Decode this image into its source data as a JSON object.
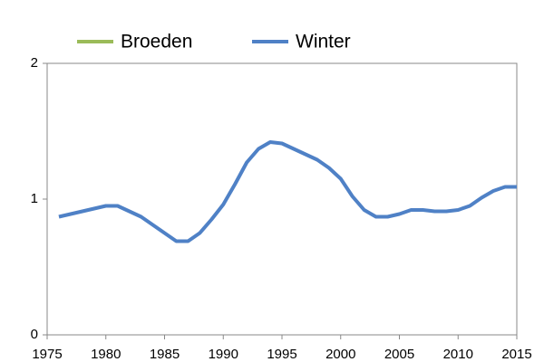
{
  "chart_data": {
    "type": "line",
    "x": [
      1976,
      1977,
      1978,
      1979,
      1980,
      1981,
      1982,
      1983,
      1984,
      1985,
      1986,
      1987,
      1988,
      1989,
      1990,
      1991,
      1992,
      1993,
      1994,
      1995,
      1996,
      1997,
      1998,
      1999,
      2000,
      2001,
      2002,
      2003,
      2004,
      2005,
      2006,
      2007,
      2008,
      2009,
      2010,
      2011,
      2012,
      2013,
      2014,
      2015
    ],
    "series": [
      {
        "name": "Broeden",
        "color": "#9bbb59",
        "values": [
          null,
          null,
          null,
          null,
          null,
          null,
          null,
          null,
          null,
          null,
          null,
          null,
          null,
          null,
          null,
          null,
          null,
          null,
          null,
          null,
          null,
          null,
          null,
          null,
          null,
          null,
          null,
          null,
          null,
          null,
          null,
          null,
          null,
          null,
          null,
          null,
          null,
          null,
          null,
          null
        ]
      },
      {
        "name": "Winter",
        "color": "#4f81c6",
        "values": [
          0.87,
          0.89,
          0.91,
          0.93,
          0.95,
          0.95,
          0.91,
          0.87,
          0.81,
          0.75,
          0.69,
          0.69,
          0.75,
          0.85,
          0.96,
          1.11,
          1.27,
          1.37,
          1.42,
          1.41,
          1.37,
          1.33,
          1.29,
          1.23,
          1.15,
          1.02,
          0.92,
          0.87,
          0.87,
          0.89,
          0.92,
          0.92,
          0.91,
          0.91,
          0.92,
          0.95,
          1.01,
          1.06,
          1.09,
          1.09
        ]
      }
    ],
    "xlim": [
      1975,
      2015
    ],
    "xticks": [
      1975,
      1980,
      1985,
      1990,
      1995,
      2000,
      2005,
      2010,
      2015
    ],
    "ylim": [
      0,
      2
    ],
    "yticks": [
      0,
      1,
      2
    ],
    "grid": false,
    "legend": "top"
  }
}
